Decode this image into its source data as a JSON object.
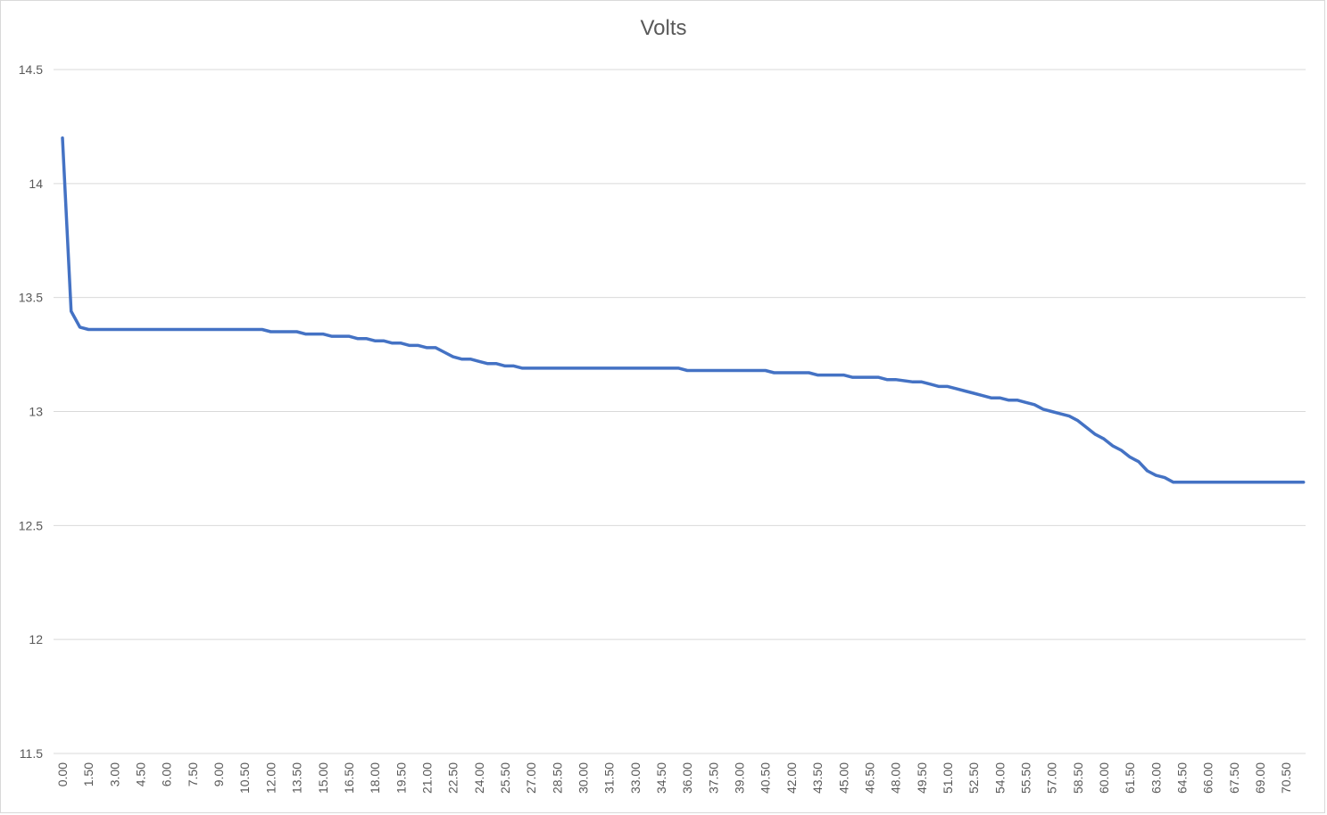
{
  "chart_data": {
    "type": "line",
    "title": "Volts",
    "xlabel": "",
    "ylabel": "",
    "ylim": [
      11.5,
      14.5
    ],
    "yticks": [
      "11.5",
      "12",
      "12.5",
      "13",
      "13.5",
      "14",
      "14.5"
    ],
    "ytick_values": [
      11.5,
      12,
      12.5,
      13,
      13.5,
      14,
      14.5
    ],
    "xtick_labels": [
      "0.00",
      "1.50",
      "3.00",
      "4.50",
      "6.00",
      "7.50",
      "9.00",
      "10.50",
      "12.00",
      "13.50",
      "15.00",
      "16.50",
      "18.00",
      "19.50",
      "21.00",
      "22.50",
      "24.00",
      "25.50",
      "27.00",
      "28.50",
      "30.00",
      "31.50",
      "33.00",
      "34.50",
      "36.00",
      "37.50",
      "39.00",
      "40.50",
      "42.00",
      "43.50",
      "45.00",
      "46.50",
      "48.00",
      "49.50",
      "51.00",
      "52.50",
      "54.00",
      "55.50",
      "57.00",
      "58.50",
      "60.00",
      "61.50",
      "63.00",
      "64.50",
      "66.00",
      "67.50",
      "69.00",
      "70.50"
    ],
    "xrange": [
      0,
      71.5
    ],
    "grid": true,
    "legend": "none",
    "color": "#4472C4",
    "series": [
      {
        "x": [
          0.0,
          0.5,
          1.0,
          1.5,
          2.0,
          3.0,
          6.0,
          9.0,
          11.5,
          12.0,
          13.5,
          14.0,
          15.0,
          15.5,
          16.0,
          16.5,
          17.0,
          17.5,
          18.0,
          18.5,
          19.0,
          19.5,
          20.0,
          20.5,
          21.0,
          21.5,
          22.0,
          22.5,
          23.0,
          23.5,
          24.0,
          24.5,
          25.0,
          25.5,
          26.0,
          26.5,
          27.0,
          30.0,
          35.0,
          35.5,
          36.0,
          40.0,
          40.5,
          41.0,
          42.0,
          43.0,
          43.5,
          44.0,
          45.0,
          45.5,
          46.0,
          47.0,
          47.5,
          48.0,
          49.0,
          49.5,
          50.0,
          50.5,
          51.0,
          51.5,
          52.0,
          52.5,
          53.0,
          53.5,
          54.0,
          54.5,
          55.0,
          55.5,
          56.0,
          56.5,
          57.0,
          57.5,
          58.0,
          58.5,
          59.0,
          59.5,
          60.0,
          60.5,
          61.0,
          61.5,
          62.0,
          62.5,
          63.0,
          63.5,
          64.0,
          71.5
        ],
        "y": [
          14.2,
          13.44,
          13.37,
          13.36,
          13.36,
          13.36,
          13.36,
          13.36,
          13.36,
          13.35,
          13.35,
          13.34,
          13.34,
          13.33,
          13.33,
          13.33,
          13.32,
          13.32,
          13.31,
          13.31,
          13.3,
          13.3,
          13.29,
          13.29,
          13.28,
          13.28,
          13.26,
          13.24,
          13.23,
          13.23,
          13.22,
          13.21,
          13.21,
          13.2,
          13.2,
          13.19,
          13.19,
          13.19,
          13.19,
          13.19,
          13.18,
          13.18,
          13.18,
          13.17,
          13.17,
          13.17,
          13.16,
          13.16,
          13.16,
          13.15,
          13.15,
          13.15,
          13.14,
          13.14,
          13.13,
          13.13,
          13.12,
          13.11,
          13.11,
          13.1,
          13.09,
          13.08,
          13.07,
          13.06,
          13.06,
          13.05,
          13.05,
          13.04,
          13.03,
          13.01,
          13.0,
          12.99,
          12.98,
          12.96,
          12.93,
          12.9,
          12.88,
          12.85,
          12.83,
          12.8,
          12.78,
          12.74,
          12.72,
          12.71,
          12.69,
          12.69
        ]
      }
    ]
  }
}
